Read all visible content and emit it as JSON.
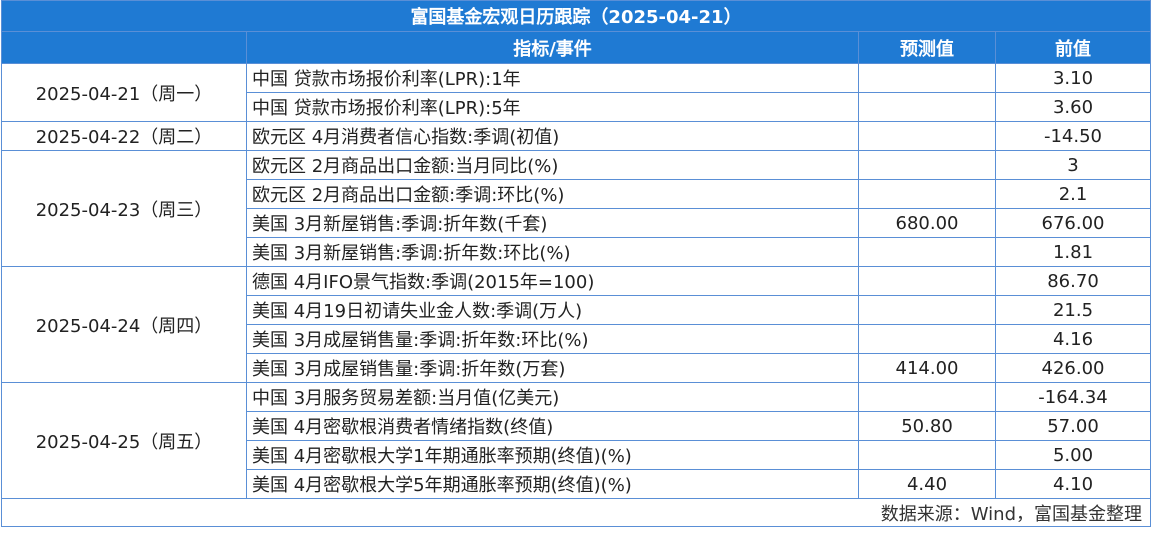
{
  "title": "富国基金宏观日历跟踪（2025-04-21）",
  "headers": {
    "indicator": "指标/事件",
    "forecast": "预测值",
    "previous": "前值"
  },
  "groups": [
    {
      "date": "2025-04-21（周一）",
      "rows": [
        {
          "indicator": "中国 贷款市场报价利率(LPR):1年",
          "forecast": "",
          "previous": "3.10"
        },
        {
          "indicator": "中国 贷款市场报价利率(LPR):5年",
          "forecast": "",
          "previous": "3.60"
        }
      ]
    },
    {
      "date": "2025-04-22（周二）",
      "rows": [
        {
          "indicator": "欧元区 4月消费者信心指数:季调(初值)",
          "forecast": "",
          "previous": "-14.50"
        }
      ]
    },
    {
      "date": "2025-04-23（周三）",
      "rows": [
        {
          "indicator": "欧元区 2月商品出口金额:当月同比(%)",
          "forecast": "",
          "previous": "3"
        },
        {
          "indicator": "欧元区 2月商品出口金额:季调:环比(%)",
          "forecast": "",
          "previous": "2.1"
        },
        {
          "indicator": "美国 3月新屋销售:季调:折年数(千套)",
          "forecast": "680.00",
          "previous": "676.00"
        },
        {
          "indicator": "美国 3月新屋销售:季调:折年数:环比(%)",
          "forecast": "",
          "previous": "1.81"
        }
      ]
    },
    {
      "date": "2025-04-24（周四）",
      "rows": [
        {
          "indicator": "德国 4月IFO景气指数:季调(2015年=100)",
          "forecast": "",
          "previous": "86.70"
        },
        {
          "indicator": "美国 4月19日初请失业金人数:季调(万人)",
          "forecast": "",
          "previous": "21.5"
        },
        {
          "indicator": "美国 3月成屋销售量:季调:折年数:环比(%)",
          "forecast": "",
          "previous": "4.16"
        },
        {
          "indicator": "美国 3月成屋销售量:季调:折年数(万套)",
          "forecast": "414.00",
          "previous": "426.00"
        }
      ]
    },
    {
      "date": "2025-04-25（周五）",
      "rows": [
        {
          "indicator": "中国 3月服务贸易差额:当月值(亿美元)",
          "forecast": "",
          "previous": "-164.34"
        },
        {
          "indicator": "美国 4月密歇根消费者情绪指数(终值)",
          "forecast": "50.80",
          "previous": "57.00"
        },
        {
          "indicator": "美国 4月密歇根大学1年期通胀率预期(终值)(%)",
          "forecast": "",
          "previous": "5.00"
        },
        {
          "indicator": "美国 4月密歇根大学5年期通胀率预期(终值)(%)",
          "forecast": "4.40",
          "previous": "4.10"
        }
      ]
    }
  ],
  "footer": "数据来源：Wind，富国基金整理",
  "colors": {
    "header_bg": "#1f7ad3",
    "border": "#5a8fd6",
    "header_text": "#ffffff"
  }
}
